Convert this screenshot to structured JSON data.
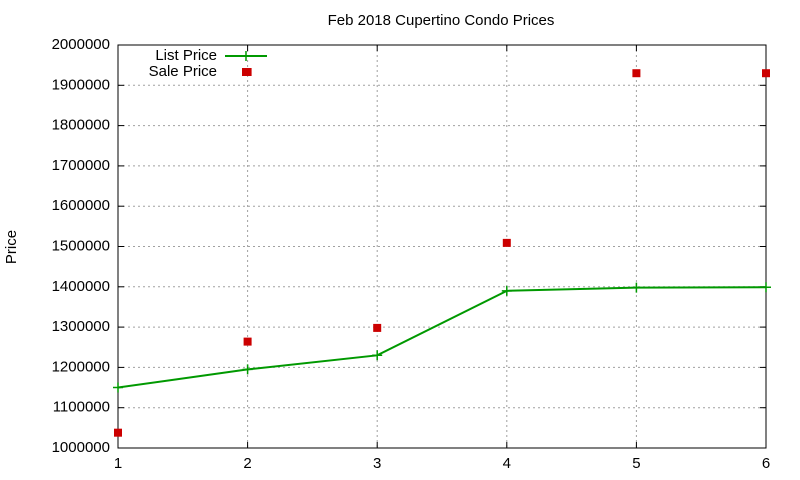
{
  "chart_data": {
    "type": "line",
    "title": "Feb 2018 Cupertino Condo Prices",
    "ylabel": "Price",
    "xlim": [
      1,
      6
    ],
    "xticks": [
      1,
      2,
      3,
      4,
      5,
      6
    ],
    "ylim": [
      1000000,
      2000000
    ],
    "yticks": [
      1000000,
      1100000,
      1200000,
      1300000,
      1400000,
      1500000,
      1600000,
      1700000,
      1800000,
      1900000,
      2000000
    ],
    "grid": true,
    "legend": "top-left",
    "series": [
      {
        "name": "List Price",
        "color": "#009900",
        "style": "linespoints",
        "x": [
          1,
          2,
          3,
          4,
          5,
          6
        ],
        "values": [
          1150000,
          1195000,
          1230000,
          1390000,
          1398000,
          1399000
        ]
      },
      {
        "name": "Sale Price",
        "color": "#cc0000",
        "style": "points",
        "x": [
          1,
          2,
          2,
          3,
          4,
          5,
          6
        ],
        "values": [
          1038000,
          1933000,
          1264000,
          1298000,
          1509000,
          1930000,
          1930000
        ]
      }
    ]
  }
}
